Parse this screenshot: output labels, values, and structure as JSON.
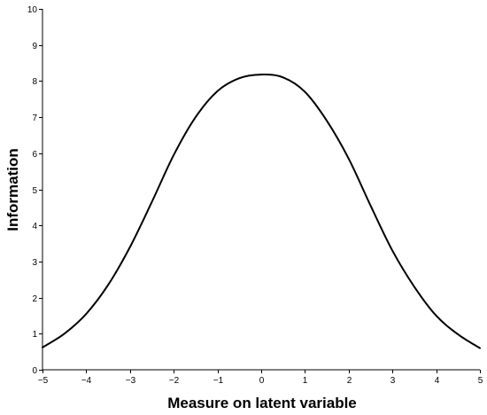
{
  "chart_data": {
    "type": "line",
    "title": "",
    "xlabel": "Measure on latent variable",
    "ylabel": "Information",
    "xlim": [
      -5,
      5
    ],
    "ylim": [
      0,
      10
    ],
    "xticks": [
      -5,
      -4,
      -3,
      -2,
      -1,
      0,
      1,
      2,
      3,
      4,
      5
    ],
    "yticks": [
      0,
      1,
      2,
      3,
      4,
      5,
      6,
      7,
      8,
      9,
      10
    ],
    "xtick_labels": [
      "−5",
      "−4",
      "−3",
      "−2",
      "−1",
      "0",
      "1",
      "2",
      "3",
      "4",
      "5"
    ],
    "ytick_labels": [
      "0",
      "1",
      "2",
      "3",
      "4",
      "5",
      "6",
      "7",
      "8",
      "9",
      "10"
    ],
    "grid": false,
    "legend": "none",
    "line_color": "#000000",
    "series": [
      {
        "x": [
          -5,
          -4.5,
          -4,
          -3.5,
          -3,
          -2.5,
          -2,
          -1.5,
          -1,
          -0.5,
          0,
          0.5,
          1,
          1.5,
          2,
          2.5,
          3,
          3.5,
          4,
          4.5,
          5
        ],
        "values": [
          0.62,
          1.0,
          1.55,
          2.35,
          3.4,
          4.65,
          5.95,
          7.0,
          7.72,
          8.08,
          8.18,
          8.1,
          7.7,
          6.9,
          5.85,
          4.55,
          3.3,
          2.3,
          1.5,
          0.98,
          0.6
        ]
      }
    ]
  }
}
